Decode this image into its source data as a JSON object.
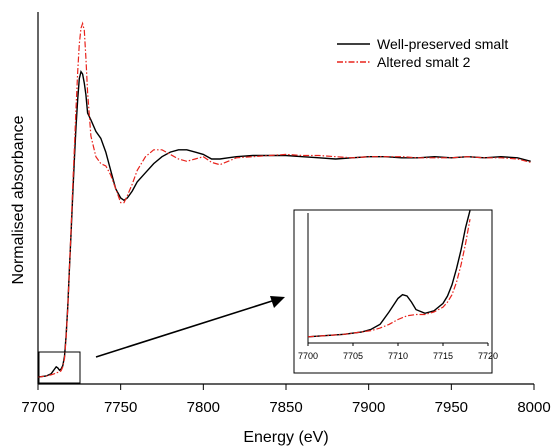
{
  "chart_data": [
    {
      "type": "line",
      "title": "",
      "xlabel": "Energy (eV)",
      "ylabel": "Normalised absorbance",
      "xlim": [
        7700,
        8000
      ],
      "ylim": [
        0,
        1.62
      ],
      "xticks": [
        7700,
        7750,
        7800,
        7850,
        7900,
        7950,
        8000
      ],
      "yticks": [],
      "grid": false,
      "legend_position": "top-right",
      "series": [
        {
          "name": "Well-preserved smalt",
          "color": "#000000",
          "style": "solid",
          "x": [
            7700,
            7705,
            7708,
            7710,
            7711,
            7712,
            7713,
            7714,
            7715,
            7716,
            7717,
            7718,
            7719,
            7720,
            7721,
            7722,
            7723,
            7724,
            7725,
            7726,
            7727,
            7728,
            7729,
            7730,
            7732,
            7735,
            7738,
            7741,
            7744,
            7747,
            7750,
            7752,
            7754,
            7757,
            7760,
            7765,
            7770,
            7775,
            7780,
            7785,
            7790,
            7795,
            7800,
            7805,
            7810,
            7815,
            7820,
            7830,
            7840,
            7850,
            7860,
            7870,
            7880,
            7890,
            7900,
            7910,
            7920,
            7930,
            7940,
            7950,
            7960,
            7970,
            7980,
            7990,
            7998
          ],
          "y": [
            0.03,
            0.035,
            0.045,
            0.065,
            0.075,
            0.07,
            0.06,
            0.065,
            0.08,
            0.12,
            0.21,
            0.34,
            0.5,
            0.66,
            0.82,
            0.98,
            1.12,
            1.24,
            1.33,
            1.36,
            1.35,
            1.31,
            1.26,
            1.18,
            1.15,
            1.1,
            1.07,
            1.01,
            0.93,
            0.85,
            0.81,
            0.8,
            0.81,
            0.84,
            0.88,
            0.92,
            0.96,
            0.99,
            1.01,
            1.02,
            1.02,
            1.01,
            1.0,
            0.98,
            0.98,
            0.985,
            0.99,
            0.995,
            0.995,
            0.995,
            0.99,
            0.985,
            0.98,
            0.985,
            0.99,
            0.99,
            0.985,
            0.985,
            0.99,
            0.985,
            0.99,
            0.985,
            0.99,
            0.985,
            0.97
          ]
        },
        {
          "name": "Altered smalt 2",
          "color": "#e8231c",
          "style": "dash-dot",
          "x": [
            7700,
            7705,
            7708,
            7710,
            7711,
            7712,
            7713,
            7714,
            7715,
            7716,
            7717,
            7718,
            7719,
            7720,
            7721,
            7722,
            7723,
            7724,
            7725,
            7726,
            7727,
            7728,
            7729,
            7730,
            7732,
            7735,
            7738,
            7741,
            7744,
            7747,
            7750,
            7752,
            7754,
            7757,
            7760,
            7765,
            7770,
            7775,
            7780,
            7785,
            7790,
            7795,
            7800,
            7805,
            7810,
            7815,
            7820,
            7830,
            7840,
            7850,
            7860,
            7870,
            7880,
            7890,
            7900,
            7910,
            7920,
            7930,
            7940,
            7950,
            7960,
            7970,
            7980,
            7990,
            7998
          ],
          "y": [
            0.03,
            0.035,
            0.04,
            0.045,
            0.05,
            0.05,
            0.052,
            0.058,
            0.075,
            0.11,
            0.2,
            0.33,
            0.5,
            0.68,
            0.86,
            1.03,
            1.2,
            1.36,
            1.48,
            1.55,
            1.57,
            1.54,
            1.42,
            1.27,
            1.08,
            0.99,
            0.96,
            0.95,
            0.91,
            0.85,
            0.79,
            0.79,
            0.82,
            0.87,
            0.93,
            0.99,
            1.02,
            1.02,
            1.0,
            0.98,
            0.97,
            0.98,
            0.99,
            0.965,
            0.955,
            0.97,
            0.985,
            0.99,
            0.995,
            1.0,
            0.995,
            0.995,
            0.99,
            0.985,
            0.99,
            0.99,
            0.99,
            0.985,
            0.985,
            0.985,
            0.99,
            0.985,
            0.985,
            0.98,
            0.965
          ]
        }
      ],
      "annotation": "box around pre-edge region with arrow pointing to inset"
    },
    {
      "type": "line",
      "title": "",
      "xlabel": "",
      "ylabel": "",
      "xlim": [
        7700,
        7720
      ],
      "ylim": [
        0.025,
        0.13
      ],
      "xticks": [
        7700,
        7705,
        7710,
        7715,
        7720
      ],
      "grid": false,
      "series": [
        {
          "name": "Well-preserved smalt",
          "color": "#000000",
          "style": "solid",
          "x": [
            7700,
            7702,
            7704,
            7706,
            7707,
            7708,
            7709,
            7710,
            7710.5,
            7711,
            7711.5,
            7712,
            7713,
            7714,
            7715,
            7715.5,
            7716,
            7716.5,
            7717,
            7717.5,
            7718
          ],
          "y": [
            0.03,
            0.031,
            0.032,
            0.034,
            0.036,
            0.04,
            0.05,
            0.061,
            0.064,
            0.063,
            0.058,
            0.052,
            0.049,
            0.051,
            0.057,
            0.063,
            0.072,
            0.085,
            0.1,
            0.118,
            0.135
          ]
        },
        {
          "name": "Altered smalt 2",
          "color": "#e8231c",
          "style": "dash-dot",
          "x": [
            7700,
            7702,
            7704,
            7706,
            7707,
            7708,
            7709,
            7710,
            7711,
            7712,
            7713,
            7714,
            7715,
            7715.5,
            7716,
            7716.5,
            7717,
            7717.5,
            7718
          ],
          "y": [
            0.03,
            0.031,
            0.032,
            0.034,
            0.035,
            0.037,
            0.04,
            0.044,
            0.047,
            0.048,
            0.048,
            0.05,
            0.054,
            0.058,
            0.064,
            0.074,
            0.088,
            0.105,
            0.125
          ]
        }
      ]
    }
  ]
}
